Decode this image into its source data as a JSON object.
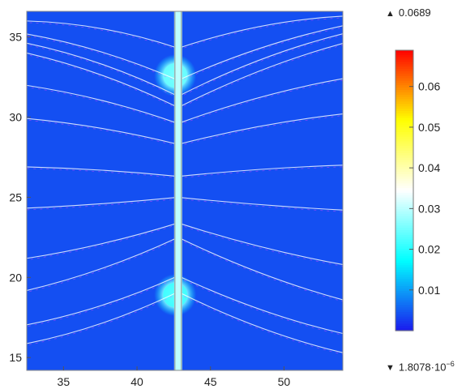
{
  "chart_data": {
    "type": "heatmap",
    "title": "",
    "xlabel": "",
    "ylabel": "",
    "xlim": [
      32.5,
      54
    ],
    "ylim": [
      14.2,
      36.6
    ],
    "x_ticks": [
      35,
      40,
      45,
      50
    ],
    "y_ticks": [
      15,
      20,
      25,
      30,
      35
    ],
    "colorbar": {
      "range": [
        1.8078e-06,
        0.0689
      ],
      "ticks": [
        0.01,
        0.02,
        0.03,
        0.04,
        0.05,
        0.06
      ],
      "ticks_labels": [
        "0.01",
        "0.02",
        "0.03",
        "0.04",
        "0.05",
        "0.06"
      ],
      "max_label": "0.0689",
      "min_label": "1.8078·10",
      "min_exponent": "−6",
      "colors": [
        "#1a1aee",
        "#00ffff",
        "#ffffff",
        "#ffff00",
        "#ff0000"
      ]
    },
    "field": {
      "background_value": 0.004,
      "hotspots": [
        {
          "x": 42.6,
          "y": 32.6,
          "value": 0.024
        },
        {
          "x": 42.6,
          "y": 18.9,
          "value": 0.021
        }
      ],
      "vertical_line_x": 42.8,
      "vertical_line_value": 0.03
    },
    "contours": [
      {
        "y0": 34.3,
        "y_end": 36.3,
        "curvature": 1.2
      },
      {
        "y0": 32.3,
        "y_end": 35.7,
        "curvature": 1.0
      },
      {
        "y0": 31.3,
        "y_end": 35.2,
        "curvature": 1.1
      },
      {
        "y0": 30.6,
        "y_end": 34.6,
        "curvature": 1.0
      },
      {
        "y0": 29.6,
        "y_end": 32.4,
        "curvature": 0.8
      },
      {
        "y0": 28.3,
        "y_end": 30.2,
        "curvature": 0.6
      },
      {
        "y0": 26.3,
        "y_end": 27.0,
        "curvature": 0.3
      },
      {
        "y0": 25.0,
        "y_end": 24.2,
        "curvature": -0.2
      },
      {
        "y0": 23.4,
        "y_end": 20.8,
        "curvature": -0.6
      },
      {
        "y0": 22.5,
        "y_end": 18.6,
        "curvature": -0.9
      },
      {
        "y0": 20.1,
        "y_end": 16.5,
        "curvature": -1.0
      },
      {
        "y0": 19.1,
        "y_end": 15.3,
        "curvature": -1.1
      }
    ]
  }
}
